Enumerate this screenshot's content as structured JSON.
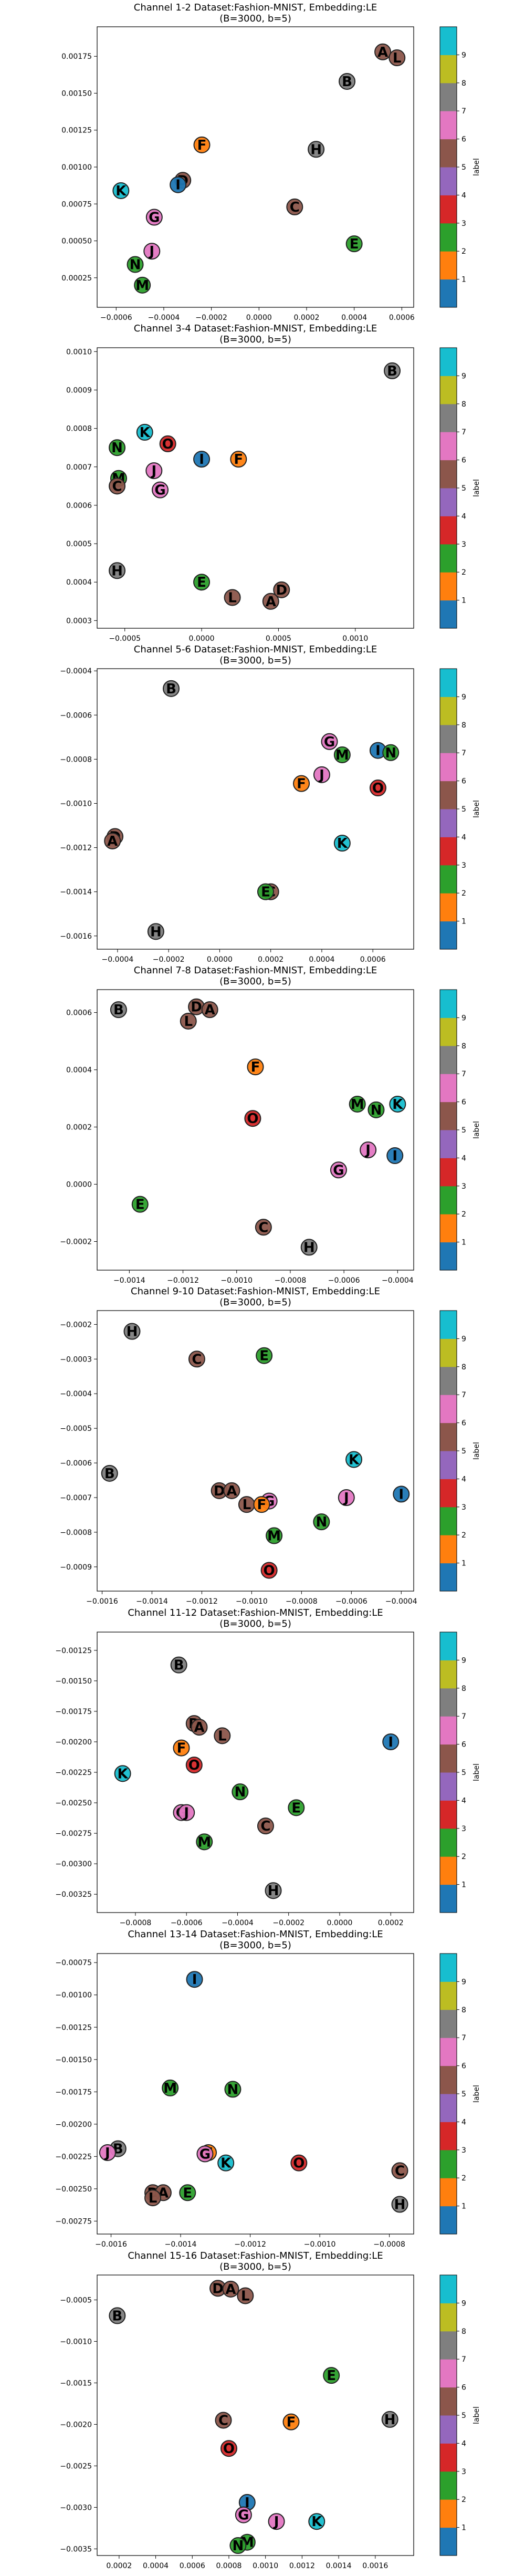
{
  "colorbar": {
    "label": "label",
    "ticks": [
      "1",
      "2",
      "3",
      "4",
      "5",
      "6",
      "7",
      "8",
      "9"
    ],
    "colors": [
      "#1f77b4",
      "#ff7f0e",
      "#2ca02c",
      "#d62728",
      "#9467bd",
      "#8c564b",
      "#e377c2",
      "#7f7f7f",
      "#bcbd22",
      "#17becf"
    ]
  },
  "letter_classes": {
    "A": 5,
    "B": 7,
    "C": 5,
    "D": 5,
    "E": 2,
    "F": 1,
    "G": 6,
    "H": 7,
    "I": 0,
    "J": 6,
    "K": 9,
    "L": 5,
    "M": 2,
    "N": 2,
    "O": 3
  },
  "chart_data": [
    {
      "type": "scatter",
      "title": "Channel 1-2 Dataset:Fashion-MNIST, Embedding:LE",
      "subtitle": "(B=3000, b=5)",
      "xlim": [
        -0.00068,
        0.00065
      ],
      "ylim": [
        5e-05,
        0.00195
      ],
      "xticks": [
        -0.0006,
        -0.0004,
        -0.0002,
        0.0,
        0.0002,
        0.0004,
        0.0006
      ],
      "xtick_labels": [
        "−0.0006",
        "−0.0004",
        "−0.0002",
        "0.0000",
        "0.0002",
        "0.0004",
        "0.0006"
      ],
      "yticks": [
        0.00025,
        0.0005,
        0.00075,
        0.001,
        0.00125,
        0.0015,
        0.00175
      ],
      "ytick_labels": [
        "0.00025",
        "0.00050",
        "0.00075",
        "0.00100",
        "0.00125",
        "0.00150",
        "0.00175"
      ],
      "points": [
        {
          "label": "A",
          "x": 0.00052,
          "y": 0.00178
        },
        {
          "label": "L",
          "x": 0.00058,
          "y": 0.00174
        },
        {
          "label": "B",
          "x": 0.00037,
          "y": 0.00158
        },
        {
          "label": "H",
          "x": 0.00024,
          "y": 0.00112
        },
        {
          "label": "F",
          "x": -0.00024,
          "y": 0.00115
        },
        {
          "label": "D",
          "x": -0.00032,
          "y": 0.00091
        },
        {
          "label": "I",
          "x": -0.00034,
          "y": 0.00088
        },
        {
          "label": "K",
          "x": -0.00058,
          "y": 0.00084
        },
        {
          "label": "C",
          "x": 0.00015,
          "y": 0.00073
        },
        {
          "label": "G",
          "x": -0.00044,
          "y": 0.00066
        },
        {
          "label": "E",
          "x": 0.0004,
          "y": 0.00048
        },
        {
          "label": "J",
          "x": -0.00045,
          "y": 0.00043
        },
        {
          "label": "N",
          "x": -0.00052,
          "y": 0.00034
        },
        {
          "label": "M",
          "x": -0.00049,
          "y": 0.0002
        }
      ]
    },
    {
      "type": "scatter",
      "title": "Channel 3-4 Dataset:Fashion-MNIST, Embedding:LE",
      "subtitle": "(B=3000, b=5)",
      "xlim": [
        -0.00068,
        0.00138
      ],
      "ylim": [
        0.00028,
        0.00101
      ],
      "xticks": [
        -0.0005,
        0.0,
        0.0005,
        0.001
      ],
      "xtick_labels": [
        "−0.0005",
        "0.0000",
        "0.0005",
        "0.0010"
      ],
      "yticks": [
        0.0003,
        0.0004,
        0.0005,
        0.0006,
        0.0007,
        0.0008,
        0.0009,
        0.001
      ],
      "ytick_labels": [
        "0.0003",
        "0.0004",
        "0.0005",
        "0.0006",
        "0.0007",
        "0.0008",
        "0.0009",
        "0.0010"
      ],
      "points": [
        {
          "label": "B",
          "x": 0.00124,
          "y": 0.00095
        },
        {
          "label": "K",
          "x": -0.00037,
          "y": 0.00079
        },
        {
          "label": "O",
          "x": -0.00022,
          "y": 0.00076
        },
        {
          "label": "N",
          "x": -0.00055,
          "y": 0.00075
        },
        {
          "label": "I",
          "x": 0.0,
          "y": 0.00072
        },
        {
          "label": "F",
          "x": 0.00024,
          "y": 0.00072
        },
        {
          "label": "J",
          "x": -0.00031,
          "y": 0.00069
        },
        {
          "label": "M",
          "x": -0.00054,
          "y": 0.00067
        },
        {
          "label": "C",
          "x": -0.00055,
          "y": 0.00065
        },
        {
          "label": "G",
          "x": -0.00027,
          "y": 0.00064
        },
        {
          "label": "H",
          "x": -0.00055,
          "y": 0.00043
        },
        {
          "label": "E",
          "x": 0.0,
          "y": 0.0004
        },
        {
          "label": "D",
          "x": 0.00052,
          "y": 0.00038
        },
        {
          "label": "L",
          "x": 0.0002,
          "y": 0.00036
        },
        {
          "label": "A",
          "x": 0.00045,
          "y": 0.00035
        }
      ]
    },
    {
      "type": "scatter",
      "title": "Channel 5-6 Dataset:Fashion-MNIST, Embedding:LE",
      "subtitle": "(B=3000, b=5)",
      "xlim": [
        -0.00048,
        0.00076
      ],
      "ylim": [
        -0.00166,
        -0.00039
      ],
      "xticks": [
        -0.0004,
        -0.0002,
        0.0,
        0.0002,
        0.0004,
        0.0006
      ],
      "xtick_labels": [
        "−0.0004",
        "−0.0002",
        "0.0000",
        "0.0002",
        "0.0004",
        "0.0006"
      ],
      "yticks": [
        -0.0016,
        -0.0014,
        -0.0012,
        -0.001,
        -0.0008,
        -0.0006,
        -0.0004
      ],
      "ytick_labels": [
        "−0.0016",
        "−0.0014",
        "−0.0012",
        "−0.0010",
        "−0.0008",
        "−0.0006",
        "−0.0004"
      ],
      "points": [
        {
          "label": "B",
          "x": -0.00019,
          "y": -0.00048
        },
        {
          "label": "G",
          "x": 0.00043,
          "y": -0.00072
        },
        {
          "label": "I",
          "x": 0.00062,
          "y": -0.00076
        },
        {
          "label": "N",
          "x": 0.00067,
          "y": -0.00077
        },
        {
          "label": "M",
          "x": 0.00048,
          "y": -0.00078
        },
        {
          "label": "J",
          "x": 0.0004,
          "y": -0.00087
        },
        {
          "label": "F",
          "x": 0.00032,
          "y": -0.00091
        },
        {
          "label": "O",
          "x": 0.00062,
          "y": -0.00093
        },
        {
          "label": "D",
          "x": -0.00041,
          "y": -0.00115
        },
        {
          "label": "A",
          "x": -0.00042,
          "y": -0.00117
        },
        {
          "label": "K",
          "x": 0.00048,
          "y": -0.00118
        },
        {
          "label": "C",
          "x": 0.0002,
          "y": -0.0014
        },
        {
          "label": "E",
          "x": 0.00018,
          "y": -0.0014
        },
        {
          "label": "H",
          "x": -0.00025,
          "y": -0.00158
        }
      ]
    },
    {
      "type": "scatter",
      "title": "Channel 7-8 Dataset:Fashion-MNIST, Embedding:LE",
      "subtitle": "(B=3000, b=5)",
      "xlim": [
        -0.00152,
        -0.00034
      ],
      "ylim": [
        -0.0003,
        0.00068
      ],
      "xticks": [
        -0.0014,
        -0.0012,
        -0.001,
        -0.0008,
        -0.0006,
        -0.0004
      ],
      "xtick_labels": [
        "−0.0014",
        "−0.0012",
        "−0.0010",
        "−0.0008",
        "−0.0006",
        "−0.0004"
      ],
      "yticks": [
        -0.0002,
        0.0,
        0.0002,
        0.0004,
        0.0006
      ],
      "ytick_labels": [
        "−0.0002",
        "0.0000",
        "0.0002",
        "0.0004",
        "0.0006"
      ],
      "points": [
        {
          "label": "B",
          "x": -0.00144,
          "y": 0.00061
        },
        {
          "label": "D",
          "x": -0.00115,
          "y": 0.00062
        },
        {
          "label": "A",
          "x": -0.0011,
          "y": 0.00061
        },
        {
          "label": "L",
          "x": -0.00118,
          "y": 0.00057
        },
        {
          "label": "F",
          "x": -0.00093,
          "y": 0.00041
        },
        {
          "label": "M",
          "x": -0.00055,
          "y": 0.00028
        },
        {
          "label": "K",
          "x": -0.0004,
          "y": 0.00028
        },
        {
          "label": "N",
          "x": -0.00048,
          "y": 0.00026
        },
        {
          "label": "O",
          "x": -0.00094,
          "y": 0.00023
        },
        {
          "label": "J",
          "x": -0.00051,
          "y": 0.00012
        },
        {
          "label": "I",
          "x": -0.00041,
          "y": 0.0001
        },
        {
          "label": "G",
          "x": -0.00062,
          "y": 5e-05
        },
        {
          "label": "E",
          "x": -0.00136,
          "y": -7e-05
        },
        {
          "label": "C",
          "x": -0.0009,
          "y": -0.00015
        },
        {
          "label": "H",
          "x": -0.00073,
          "y": -0.00022
        }
      ]
    },
    {
      "type": "scatter",
      "title": "Channel 9-10 Dataset:Fashion-MNIST, Embedding:LE",
      "subtitle": "(B=3000, b=5)",
      "xlim": [
        -0.00162,
        -0.00035
      ],
      "ylim": [
        -0.00097,
        -0.00016
      ],
      "xticks": [
        -0.0016,
        -0.0014,
        -0.0012,
        -0.001,
        -0.0008,
        -0.0006,
        -0.0004
      ],
      "xtick_labels": [
        "−0.0016",
        "−0.0014",
        "−0.0012",
        "−0.0010",
        "−0.0008",
        "−0.0006",
        "−0.0004"
      ],
      "yticks": [
        -0.0009,
        -0.0008,
        -0.0007,
        -0.0006,
        -0.0005,
        -0.0004,
        -0.0003,
        -0.0002
      ],
      "ytick_labels": [
        "−0.0009",
        "−0.0008",
        "−0.0007",
        "−0.0006",
        "−0.0005",
        "−0.0004",
        "−0.0003",
        "−0.0002"
      ],
      "points": [
        {
          "label": "H",
          "x": -0.00148,
          "y": -0.00022
        },
        {
          "label": "C",
          "x": -0.00122,
          "y": -0.0003
        },
        {
          "label": "E",
          "x": -0.00095,
          "y": -0.00029
        },
        {
          "label": "K",
          "x": -0.00059,
          "y": -0.00059
        },
        {
          "label": "B",
          "x": -0.00157,
          "y": -0.00063
        },
        {
          "label": "D",
          "x": -0.00113,
          "y": -0.00068
        },
        {
          "label": "A",
          "x": -0.00108,
          "y": -0.00068
        },
        {
          "label": "I",
          "x": -0.0004,
          "y": -0.00069
        },
        {
          "label": "J",
          "x": -0.00062,
          "y": -0.0007
        },
        {
          "label": "L",
          "x": -0.00102,
          "y": -0.00072
        },
        {
          "label": "G",
          "x": -0.00093,
          "y": -0.00071
        },
        {
          "label": "F",
          "x": -0.00096,
          "y": -0.00072
        },
        {
          "label": "N",
          "x": -0.00072,
          "y": -0.00077
        },
        {
          "label": "M",
          "x": -0.00091,
          "y": -0.00081
        },
        {
          "label": "O",
          "x": -0.00093,
          "y": -0.00091
        }
      ]
    },
    {
      "type": "scatter",
      "title": "Channel 11-12 Dataset:Fashion-MNIST, Embedding:LE",
      "subtitle": "(B=3000, b=5)",
      "xlim": [
        -0.00095,
        0.00029
      ],
      "ylim": [
        -0.0034,
        -0.0011
      ],
      "xticks": [
        -0.0008,
        -0.0006,
        -0.0004,
        -0.0002,
        0.0,
        0.0002
      ],
      "xtick_labels": [
        "−0.0008",
        "−0.0006",
        "−0.0004",
        "−0.0002",
        "0.0000",
        "0.0002"
      ],
      "yticks": [
        -0.00325,
        -0.003,
        -0.00275,
        -0.0025,
        -0.00225,
        -0.002,
        -0.00175,
        -0.0015,
        -0.00125
      ],
      "ytick_labels": [
        "−0.00325",
        "−0.00300",
        "−0.00275",
        "−0.00250",
        "−0.00225",
        "−0.00200",
        "−0.00175",
        "−0.00150",
        "−0.00125"
      ],
      "points": [
        {
          "label": "B",
          "x": -0.00063,
          "y": -0.00137
        },
        {
          "label": "D",
          "x": -0.00057,
          "y": -0.00185
        },
        {
          "label": "A",
          "x": -0.00055,
          "y": -0.00188
        },
        {
          "label": "L",
          "x": -0.00046,
          "y": -0.00195
        },
        {
          "label": "I",
          "x": 0.0002,
          "y": -0.002
        },
        {
          "label": "F",
          "x": -0.00062,
          "y": -0.00205
        },
        {
          "label": "O",
          "x": -0.00057,
          "y": -0.00219
        },
        {
          "label": "K",
          "x": -0.00085,
          "y": -0.00226
        },
        {
          "label": "N",
          "x": -0.00039,
          "y": -0.00241
        },
        {
          "label": "E",
          "x": -0.00017,
          "y": -0.00254
        },
        {
          "label": "G",
          "x": -0.00062,
          "y": -0.00258
        },
        {
          "label": "J",
          "x": -0.0006,
          "y": -0.00258
        },
        {
          "label": "C",
          "x": -0.00029,
          "y": -0.00269
        },
        {
          "label": "M",
          "x": -0.00053,
          "y": -0.00282
        },
        {
          "label": "H",
          "x": -0.00026,
          "y": -0.00322
        }
      ]
    },
    {
      "type": "scatter",
      "title": "Channel 13-14 Dataset:Fashion-MNIST, Embedding:LE",
      "subtitle": "(B=3000, b=5)",
      "xlim": [
        -0.00164,
        -0.00073
      ],
      "ylim": [
        -0.00285,
        -0.00068
      ],
      "xticks": [
        -0.0016,
        -0.0014,
        -0.0012,
        -0.001,
        -0.0008
      ],
      "xtick_labels": [
        "−0.0016",
        "−0.0014",
        "−0.0012",
        "−0.0010",
        "−0.0008"
      ],
      "yticks": [
        -0.00275,
        -0.0025,
        -0.00225,
        -0.002,
        -0.00175,
        -0.0015,
        -0.00125,
        -0.001,
        -0.00075
      ],
      "ytick_labels": [
        "−0.00275",
        "−0.00250",
        "−0.00225",
        "−0.00200",
        "−0.00175",
        "−0.00150",
        "−0.00125",
        "−0.00100",
        "−0.00075"
      ],
      "points": [
        {
          "label": "I",
          "x": -0.00136,
          "y": -0.00088
        },
        {
          "label": "M",
          "x": -0.00143,
          "y": -0.00172
        },
        {
          "label": "N",
          "x": -0.00125,
          "y": -0.00173
        },
        {
          "label": "B",
          "x": -0.00158,
          "y": -0.00219
        },
        {
          "label": "J",
          "x": -0.00161,
          "y": -0.00222
        },
        {
          "label": "F",
          "x": -0.00132,
          "y": -0.00222
        },
        {
          "label": "G",
          "x": -0.00133,
          "y": -0.00223
        },
        {
          "label": "K",
          "x": -0.00127,
          "y": -0.0023
        },
        {
          "label": "O",
          "x": -0.00106,
          "y": -0.0023
        },
        {
          "label": "C",
          "x": -0.00077,
          "y": -0.00236
        },
        {
          "label": "D",
          "x": -0.00148,
          "y": -0.00253
        },
        {
          "label": "A",
          "x": -0.00145,
          "y": -0.00253
        },
        {
          "label": "E",
          "x": -0.00138,
          "y": -0.00253
        },
        {
          "label": "L",
          "x": -0.00148,
          "y": -0.00257
        },
        {
          "label": "H",
          "x": -0.00077,
          "y": -0.00262
        }
      ]
    },
    {
      "type": "scatter",
      "title": "Channel 15-16 Dataset:Fashion-MNIST, Embedding:LE",
      "subtitle": "(B=3000, b=5)",
      "xlim": [
        8e-05,
        0.00181
      ],
      "ylim": [
        -0.00358,
        -0.0002
      ],
      "xticks": [
        0.0002,
        0.0004,
        0.0006,
        0.0008,
        0.001,
        0.0012,
        0.0014,
        0.0016
      ],
      "xtick_labels": [
        "0.0002",
        "0.0004",
        "0.0006",
        "0.0008",
        "0.0010",
        "0.0012",
        "0.0014",
        "0.0016"
      ],
      "yticks": [
        -0.0035,
        -0.003,
        -0.0025,
        -0.002,
        -0.0015,
        -0.001,
        -0.0005
      ],
      "ytick_labels": [
        "−0.0035",
        "−0.0030",
        "−0.0025",
        "−0.0020",
        "−0.0015",
        "−0.0010",
        "−0.0005"
      ],
      "points": [
        {
          "label": "D",
          "x": 0.00074,
          "y": -0.00036
        },
        {
          "label": "A",
          "x": 0.00081,
          "y": -0.00037
        },
        {
          "label": "L",
          "x": 0.00089,
          "y": -0.00045
        },
        {
          "label": "B",
          "x": 0.00019,
          "y": -0.00069
        },
        {
          "label": "E",
          "x": 0.00136,
          "y": -0.00141
        },
        {
          "label": "H",
          "x": 0.00168,
          "y": -0.00194
        },
        {
          "label": "C",
          "x": 0.00077,
          "y": -0.00195
        },
        {
          "label": "F",
          "x": 0.00114,
          "y": -0.00197
        },
        {
          "label": "O",
          "x": 0.0008,
          "y": -0.00229
        },
        {
          "label": "I",
          "x": 0.0009,
          "y": -0.00294
        },
        {
          "label": "G",
          "x": 0.00088,
          "y": -0.00309
        },
        {
          "label": "J",
          "x": 0.00106,
          "y": -0.00317
        },
        {
          "label": "K",
          "x": 0.00128,
          "y": -0.00317
        },
        {
          "label": "M",
          "x": 0.0009,
          "y": -0.00342
        },
        {
          "label": "N",
          "x": 0.00085,
          "y": -0.00346
        }
      ]
    }
  ]
}
